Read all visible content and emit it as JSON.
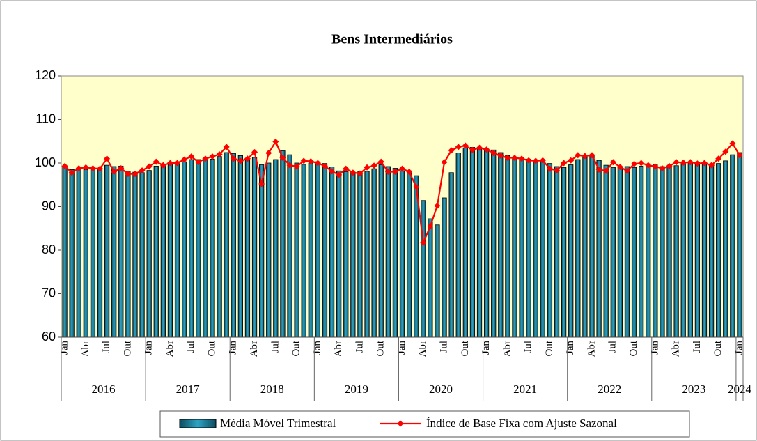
{
  "chart_data": {
    "type": "combo",
    "title": "Bens Intermediários",
    "categories": [
      "Jan",
      null,
      null,
      "Abr",
      null,
      null,
      "Jul",
      null,
      null,
      "Out",
      null,
      null,
      "Jan",
      null,
      null,
      "Abr",
      null,
      null,
      "Jul",
      null,
      null,
      "Out",
      null,
      null,
      "Jan",
      null,
      null,
      "Abr",
      null,
      null,
      "Jul",
      null,
      null,
      "Out",
      null,
      null,
      "Jan",
      null,
      null,
      "Abr",
      null,
      null,
      "Jul",
      null,
      null,
      "Out",
      null,
      null,
      "Jan",
      null,
      null,
      "Abr",
      null,
      null,
      "Jul",
      null,
      null,
      "Out",
      null,
      null,
      "Jan",
      null,
      null,
      "Abr",
      null,
      null,
      "Jul",
      null,
      null,
      "Out",
      null,
      null,
      "Jan",
      null,
      null,
      "Abr",
      null,
      null,
      "Jul",
      null,
      null,
      "Out",
      null,
      null,
      "Jan",
      null,
      null,
      "Abr",
      null,
      null,
      "Jul",
      null,
      null,
      "Out",
      null,
      null,
      "Jan"
    ],
    "year_groups": [
      {
        "label": "2016",
        "months": 12
      },
      {
        "label": "2017",
        "months": 12
      },
      {
        "label": "2018",
        "months": 12
      },
      {
        "label": "2019",
        "months": 12
      },
      {
        "label": "2020",
        "months": 12
      },
      {
        "label": "2021",
        "months": 12
      },
      {
        "label": "2022",
        "months": 12
      },
      {
        "label": "2023",
        "months": 12
      },
      {
        "label": "2024",
        "months": 1
      }
    ],
    "series": [
      {
        "name": "Média Móvel Trimestral",
        "type": "bar",
        "color": "#2ea3c4",
        "values": [
          99,
          98.5,
          98.6,
          98.5,
          98.9,
          98.8,
          99.5,
          99.2,
          99.3,
          98.1,
          97.9,
          97.8,
          98.3,
          99.3,
          99.7,
          99.9,
          99.8,
          100.3,
          100.8,
          100.8,
          100.9,
          100.9,
          101.5,
          102.4,
          102.2,
          101.7,
          100.8,
          101.3,
          99.6,
          100,
          100.8,
          102.8,
          101.9,
          100,
          99.7,
          100,
          100.3,
          99.9,
          99.1,
          98.2,
          98,
          97.9,
          98,
          98.1,
          98.7,
          99.6,
          99.2,
          98.8,
          98.2,
          98.2,
          97.1,
          91.4,
          87.2,
          85.8,
          92,
          97.8,
          102.3,
          103.5,
          103.6,
          103.5,
          103.2,
          103,
          102.4,
          101.7,
          101.4,
          101.1,
          100.9,
          100.7,
          100.6,
          99.9,
          99.2,
          99,
          99.6,
          100.8,
          101.3,
          101.7,
          100.6,
          99.5,
          99,
          99.2,
          99.2,
          99,
          99.3,
          99.8,
          99.6,
          99.2,
          99.1,
          99.4,
          99.9,
          100.2,
          100.1,
          100,
          99.8,
          99.9,
          100.5,
          101.9,
          102.4
        ]
      },
      {
        "name": "Índice de Base Fixa com Ajuste Sazonal",
        "type": "line",
        "color": "#ff0000",
        "values": [
          99.3,
          97.8,
          98.8,
          99,
          98.8,
          98.7,
          101,
          98,
          98.8,
          97.5,
          97.5,
          98.3,
          99.2,
          100.3,
          99.5,
          100,
          100,
          100.8,
          101.5,
          100.2,
          101,
          101.5,
          102,
          103.7,
          101,
          100.5,
          101,
          102.5,
          95.2,
          102.3,
          104.9,
          101.2,
          99.5,
          99.2,
          100.5,
          100.4,
          100,
          99.3,
          98.1,
          97.3,
          98.7,
          97.8,
          97.6,
          99,
          99.4,
          100.3,
          98,
          98,
          98.7,
          98,
          94.5,
          81.7,
          85.5,
          90.2,
          100.2,
          102.9,
          103.7,
          104,
          103,
          103.5,
          103.1,
          102.3,
          101.7,
          101.2,
          101.2,
          101,
          100.6,
          100.5,
          100.6,
          98.7,
          98.3,
          100,
          100.6,
          101.8,
          101.6,
          101.8,
          98.5,
          98.2,
          100.2,
          99.1,
          98.2,
          99.8,
          100,
          99.5,
          99.2,
          98.8,
          99.3,
          100.2,
          100.1,
          100.2,
          99.9,
          100,
          99.5,
          101,
          102.6,
          104.5,
          101.8
        ]
      }
    ],
    "ylim": [
      60,
      120
    ],
    "yticks": [
      60,
      70,
      80,
      90,
      100,
      110,
      120
    ],
    "grid": false
  }
}
